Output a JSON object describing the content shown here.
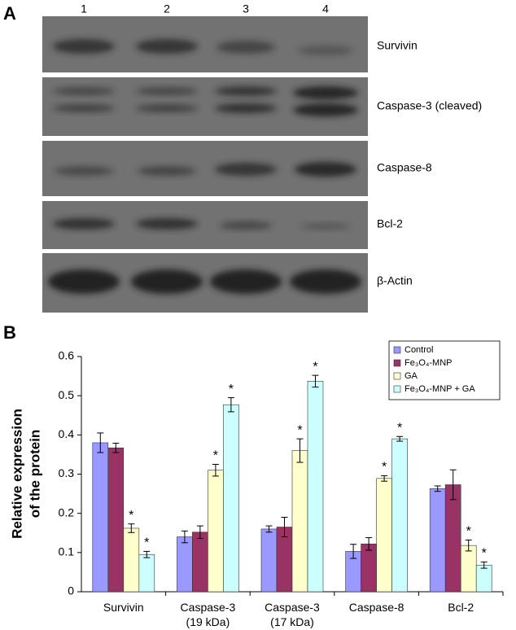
{
  "blot": {
    "panel_label": "A",
    "lanes": [
      "1",
      "2",
      "3",
      "4"
    ],
    "proteins": [
      "Survivin",
      "Caspase-3 (cleaved)",
      "Caspase-8",
      "Bcl-2",
      "β-Actin"
    ]
  },
  "chart_data": {
    "type": "bar",
    "panel_label": "B",
    "ylabel": [
      "Relative expression",
      "of the protein"
    ],
    "categories": [
      "Survivin",
      "Caspase-3\n(19 kDa)",
      "Caspase-3\n(17 kDa)",
      "Caspase-8",
      "Bcl-2"
    ],
    "ylim": [
      0,
      0.6
    ],
    "yticks": [
      0,
      0.1,
      0.2,
      0.3,
      0.4,
      0.5,
      0.6
    ],
    "significance_mark": "*",
    "series": [
      {
        "name": "Control",
        "color": "#9999ff",
        "values": [
          0.38,
          0.14,
          0.16,
          0.103,
          0.263
        ],
        "errors": [
          0.025,
          0.015,
          0.008,
          0.018,
          0.007
        ],
        "significant": [
          false,
          false,
          false,
          false,
          false
        ]
      },
      {
        "name": "Fe₃O₄-MNP",
        "color": "#993366",
        "values": [
          0.367,
          0.152,
          0.165,
          0.122,
          0.273
        ],
        "errors": [
          0.012,
          0.016,
          0.025,
          0.016,
          0.038
        ],
        "significant": [
          false,
          false,
          false,
          false,
          false
        ]
      },
      {
        "name": "GA",
        "color": "#ffffcc",
        "values": [
          0.162,
          0.31,
          0.36,
          0.289,
          0.118
        ],
        "errors": [
          0.011,
          0.015,
          0.03,
          0.007,
          0.014
        ],
        "significant": [
          true,
          true,
          true,
          true,
          true
        ]
      },
      {
        "name": "Fe₃O₄-MNP + GA",
        "color": "#ccffff",
        "values": [
          0.095,
          0.477,
          0.537,
          0.39,
          0.068
        ],
        "errors": [
          0.008,
          0.018,
          0.015,
          0.006,
          0.008
        ],
        "significant": [
          true,
          true,
          true,
          true,
          true
        ]
      }
    ]
  }
}
